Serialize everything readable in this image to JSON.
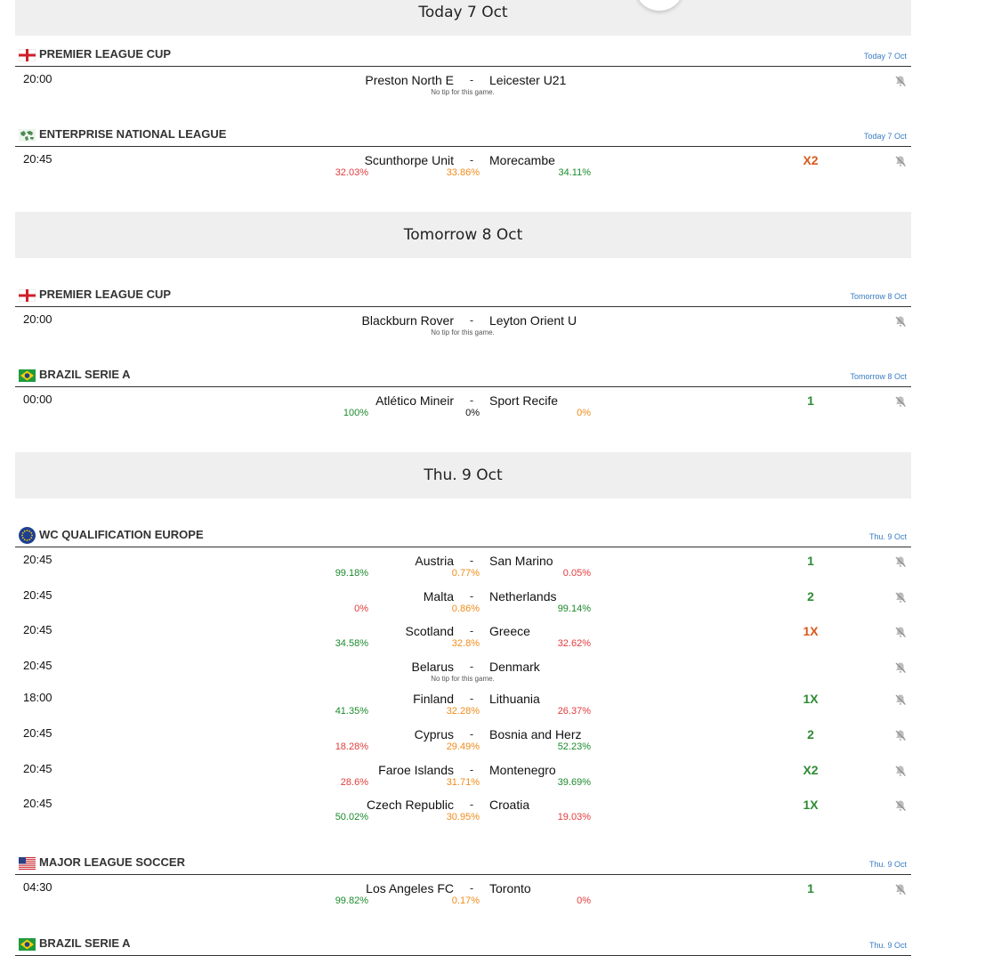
{
  "colors": {
    "pct_green": "#1b8a2c",
    "pct_orange": "#f08c1c",
    "pct_red": "#e23c3c",
    "tip_green": "#2e8b35",
    "tip_orange": "#d9591b",
    "league_date": "#3a7cc2"
  },
  "no_tip_text": "No tip for this game.",
  "days": {
    "d1": "Today 7 Oct",
    "d2": "Tomorrow 8 Oct",
    "d3": "Thu. 9 Oct"
  },
  "leagues": {
    "l1": {
      "name": "PREMIER LEAGUE CUP",
      "date": "Today 7 Oct",
      "flag": "england-flag-icon"
    },
    "l2": {
      "name": "ENTERPRISE NATIONAL LEAGUE",
      "date": "Today 7 Oct",
      "flag": "world-map-icon"
    },
    "l3": {
      "name": "PREMIER LEAGUE CUP",
      "date": "Tomorrow 8 Oct",
      "flag": "england-flag-icon"
    },
    "l4": {
      "name": "BRAZIL SERIE A",
      "date": "Tomorrow 8 Oct",
      "flag": "brazil-flag-icon"
    },
    "l5": {
      "name": "WC QUALIFICATION EUROPE",
      "date": "Thu. 9 Oct",
      "flag": "europe-flag-icon"
    },
    "l6": {
      "name": "MAJOR LEAGUE SOCCER",
      "date": "Thu. 9 Oct",
      "flag": "usa-flag-icon"
    },
    "l7": {
      "name": "BRAZIL SERIE A",
      "date": "Thu. 9 Oct",
      "flag": "brazil-flag-icon"
    }
  },
  "matches": {
    "m1": {
      "time": "20:00",
      "home": "Preston North E",
      "sep": "-",
      "away": "Leicester U21",
      "tip": "",
      "notip": "No tip for this game."
    },
    "m2": {
      "time": "20:45",
      "home": "Scunthorpe Unit",
      "sep": "-",
      "away": "Morecambe",
      "tip": "X2",
      "p1": "32.03%",
      "px": "33.86%",
      "p2": "34.11%"
    },
    "m3": {
      "time": "20:00",
      "home": "Blackburn Rover",
      "sep": "-",
      "away": "Leyton Orient U",
      "tip": "",
      "notip": "No tip for this game."
    },
    "m4": {
      "time": "00:00",
      "home": "Atlético Mineir",
      "sep": "-",
      "away": "Sport Recife",
      "tip": "1",
      "p1": "100%",
      "px": "0%",
      "p2": "0%"
    },
    "m5": {
      "time": "20:45",
      "home": "Austria",
      "sep": "-",
      "away": "San Marino",
      "tip": "1",
      "p1": "99.18%",
      "px": "0.77%",
      "p2": "0.05%"
    },
    "m6": {
      "time": "20:45",
      "home": "Malta",
      "sep": "-",
      "away": "Netherlands",
      "tip": "2",
      "p1": "0%",
      "px": "0.86%",
      "p2": "99.14%"
    },
    "m7": {
      "time": "20:45",
      "home": "Scotland",
      "sep": "-",
      "away": "Greece",
      "tip": "1X",
      "p1": "34.58%",
      "px": "32.8%",
      "p2": "32.62%"
    },
    "m8": {
      "time": "20:45",
      "home": "Belarus",
      "sep": "-",
      "away": "Denmark",
      "tip": "",
      "notip": "No tip for this game."
    },
    "m9": {
      "time": "18:00",
      "home": "Finland",
      "sep": "-",
      "away": "Lithuania",
      "tip": "1X",
      "p1": "41.35%",
      "px": "32.28%",
      "p2": "26.37%"
    },
    "m10": {
      "time": "20:45",
      "home": "Cyprus",
      "sep": "-",
      "away": "Bosnia and Herz",
      "tip": "2",
      "p1": "18.28%",
      "px": "29.49%",
      "p2": "52.23%"
    },
    "m11": {
      "time": "20:45",
      "home": "Faroe Islands",
      "sep": "-",
      "away": "Montenegro",
      "tip": "X2",
      "p1": "28.6%",
      "px": "31.71%",
      "p2": "39.69%"
    },
    "m12": {
      "time": "20:45",
      "home": "Czech Republic",
      "sep": "-",
      "away": "Croatia",
      "tip": "1X",
      "p1": "50.02%",
      "px": "30.95%",
      "p2": "19.03%"
    },
    "m13": {
      "time": "04:30",
      "home": "Los Angeles FC",
      "sep": "-",
      "away": "Toronto",
      "tip": "1",
      "p1": "99.82%",
      "px": "0.17%",
      "p2": "0%"
    }
  },
  "icons": {
    "bell": "bell-off-icon"
  }
}
